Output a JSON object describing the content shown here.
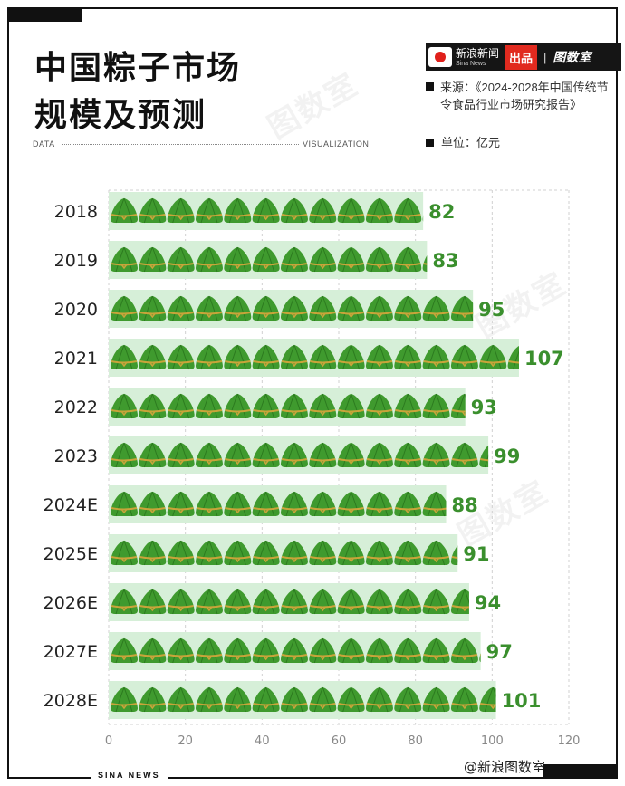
{
  "title_line1": "中国粽子市场",
  "title_line2": "规模及预测",
  "brand": {
    "name": "新浪新闻",
    "name_en": "Sina News",
    "badge": "出品",
    "studio": "图数室"
  },
  "source_label": "来源：《2024-2028年中国传统节令食品行业市场研究报告》",
  "unit_label": "单位：亿元",
  "data_left": "DATA",
  "data_right": "VISUALIZATION",
  "footer": "SINA NEWS",
  "watermark_credit": "@新浪图数室",
  "colors": {
    "icon": "#3f9a2e",
    "bar_bg": "#d6efd8",
    "value": "#3a8f2d",
    "grid": "#d0d0d0"
  },
  "chart_data": {
    "type": "bar",
    "orientation": "horizontal",
    "categories": [
      "2018",
      "2019",
      "2020",
      "2021",
      "2022",
      "2023",
      "2024E",
      "2025E",
      "2026E",
      "2027E",
      "2028E"
    ],
    "values": [
      82,
      83,
      95,
      107,
      93,
      99,
      88,
      91,
      94,
      97,
      101
    ],
    "xlim": [
      0,
      120
    ],
    "xticks": [
      0,
      20,
      40,
      60,
      80,
      100,
      120
    ],
    "grid": true,
    "unit_per_icon": 7.4,
    "icon_name": "zongzi-icon"
  }
}
